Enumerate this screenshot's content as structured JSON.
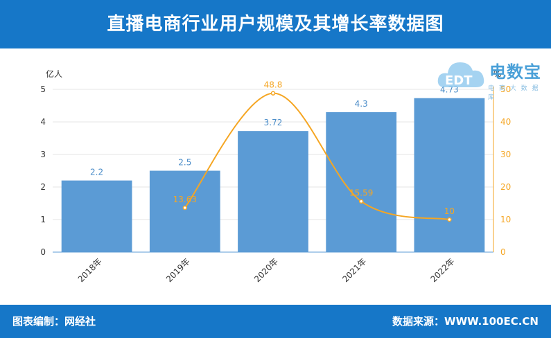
{
  "header": {
    "title": "直播电商行业用户规模及其增长率数据图"
  },
  "footer": {
    "editor": "图表编制：网经社",
    "source": "数据来源：WWW.100EC.CN"
  },
  "logo": {
    "text": "电数宝",
    "sub": "电 商 大 数 据 库",
    "badge": "EDT"
  },
  "colors": {
    "header_bg": "#1677c8",
    "bar": "#5b9bd5",
    "line": "#f5a623",
    "axis_right": "#f5a623"
  },
  "chart_data": {
    "type": "bar",
    "categories": [
      "2018年",
      "2019年",
      "2020年",
      "2021年",
      "2022年"
    ],
    "series": [
      {
        "values": [
          2.2,
          2.5,
          3.72,
          4.3,
          4.73
        ],
        "axis": "left",
        "kind": "bar",
        "labels": [
          "2.2",
          "2.5",
          "3.72",
          "4.3",
          "4.73"
        ]
      },
      {
        "values": [
          null,
          13.63,
          48.8,
          15.59,
          10
        ],
        "axis": "right",
        "kind": "line",
        "labels": [
          "",
          "13.63",
          "48.8",
          "15.59",
          "10"
        ]
      }
    ],
    "y_left": {
      "label": "亿人",
      "lim": [
        0,
        5
      ],
      "ticks": [
        0,
        1,
        2,
        3,
        4,
        5
      ]
    },
    "y_right": {
      "label": "%",
      "lim": [
        0,
        50
      ],
      "ticks": [
        0,
        10,
        20,
        30,
        40,
        50
      ]
    },
    "grid": true
  }
}
